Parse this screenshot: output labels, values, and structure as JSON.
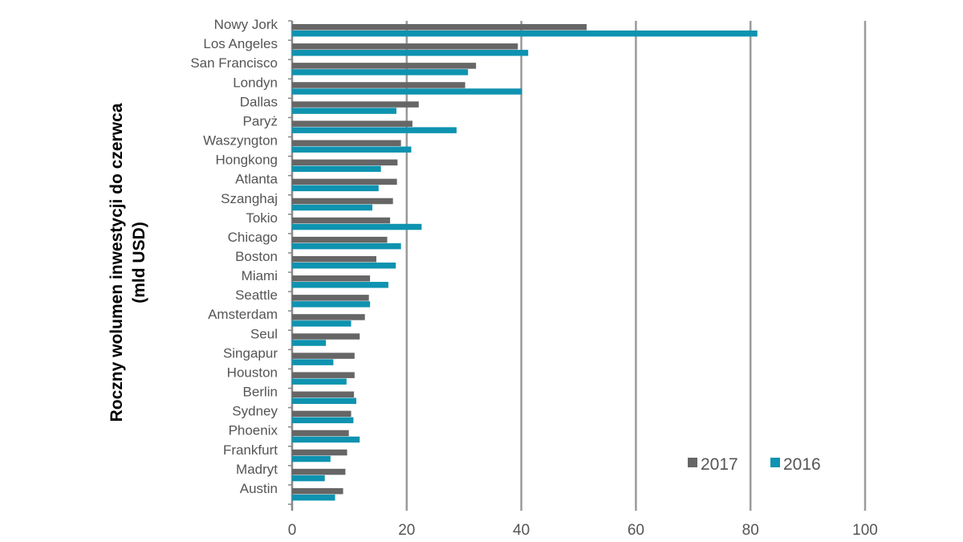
{
  "chart_data": {
    "type": "bar",
    "orientation": "horizontal",
    "title": "",
    "ylabel_lines": [
      "Roczny wolumen inwestycji do czerwca",
      "(mld USD)"
    ],
    "xlabel": "",
    "xlim": [
      0,
      100
    ],
    "xticks": [
      0,
      20,
      40,
      60,
      80,
      100
    ],
    "grid": true,
    "legend_position": "bottom-right",
    "categories": [
      "Nowy Jork",
      "Los Angeles",
      "San Francisco",
      "Londyn",
      "Dallas",
      "Paryż",
      "Waszyngton",
      "Hongkong",
      "Atlanta",
      "Szanghaj",
      "Tokio",
      "Chicago",
      "Boston",
      "Miami",
      "Seattle",
      "Amsterdam",
      "Seul",
      "Singapur",
      "Houston",
      "Berlin",
      "Sydney",
      "Phoenix",
      "Frankfurt",
      "Madryt",
      "Austin"
    ],
    "series": [
      {
        "name": "2017",
        "color": "#666666",
        "values": [
          51.4,
          39.4,
          32.1,
          30.2,
          22.1,
          21.0,
          19.0,
          18.4,
          18.3,
          17.6,
          17.1,
          16.6,
          14.7,
          13.6,
          13.4,
          12.7,
          11.8,
          10.9,
          10.9,
          10.8,
          10.3,
          9.9,
          9.6,
          9.3,
          8.9
        ]
      },
      {
        "name": "2016",
        "color": "#0e93b0",
        "values": [
          81.2,
          41.2,
          30.7,
          40.1,
          18.2,
          28.7,
          20.8,
          15.5,
          15.1,
          14.0,
          22.6,
          19.0,
          18.1,
          16.8,
          13.6,
          10.3,
          5.9,
          7.2,
          9.5,
          11.2,
          10.7,
          11.8,
          6.7,
          5.7,
          7.5
        ]
      }
    ]
  }
}
